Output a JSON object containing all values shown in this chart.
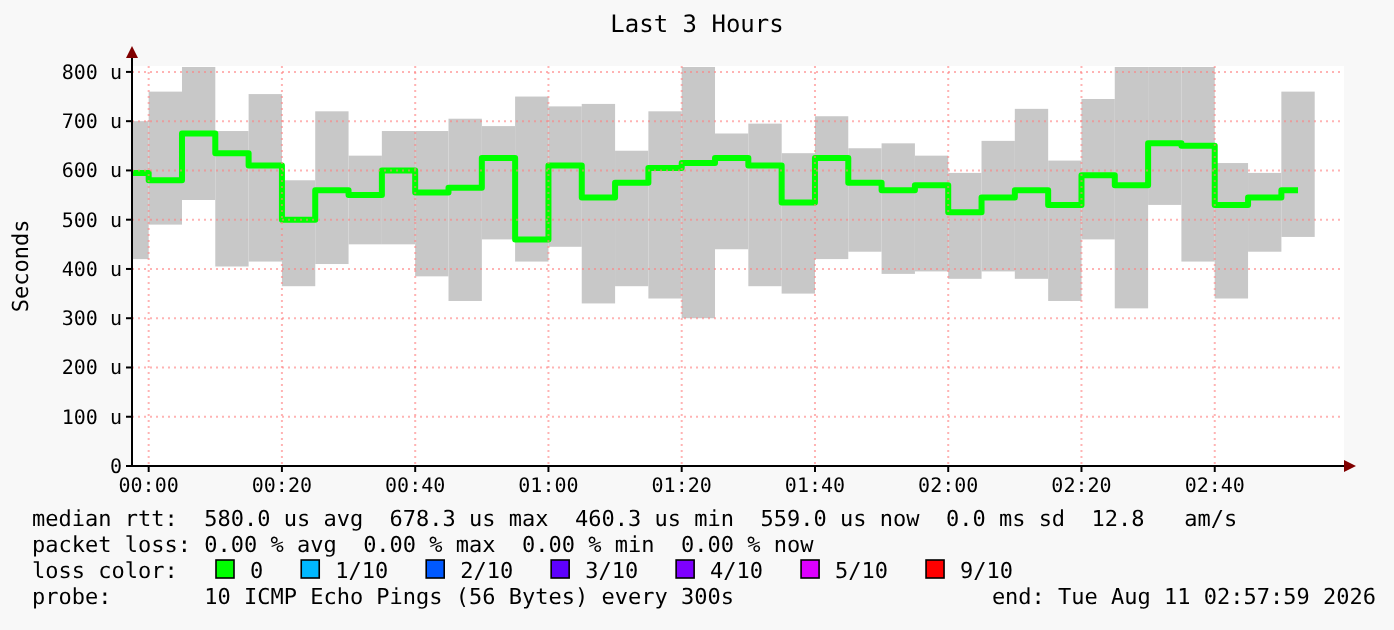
{
  "chart_data": {
    "type": "bar",
    "title": "Last 3 Hours",
    "ylabel": "Seconds",
    "x": [
      -0.0417,
      0.0417,
      0.125,
      0.2083,
      0.2917,
      0.375,
      0.4583,
      0.5417,
      0.625,
      0.7083,
      0.7917,
      0.875,
      0.9583,
      1.0417,
      1.125,
      1.2083,
      1.2917,
      1.375,
      1.4583,
      1.5417,
      1.625,
      1.7083,
      1.7917,
      1.875,
      1.9583,
      2.0417,
      2.125,
      2.2083,
      2.2917,
      2.375,
      2.4583,
      2.5417,
      2.625,
      2.7083,
      2.7917,
      2.875
    ],
    "series": [
      {
        "color": "#c8c8c8",
        "base": [
          420,
          490,
          540,
          405,
          415,
          365,
          410,
          450,
          450,
          385,
          335,
          460,
          415,
          445,
          330,
          365,
          340,
          300,
          440,
          365,
          350,
          420,
          435,
          390,
          395,
          380,
          395,
          380,
          335,
          460,
          320,
          530,
          415,
          340,
          435,
          465
        ],
        "values": [
          280,
          270,
          270,
          275,
          340,
          215,
          310,
          180,
          230,
          295,
          370,
          230,
          335,
          285,
          405,
          275,
          380,
          510,
          235,
          330,
          285,
          290,
          210,
          265,
          235,
          215,
          265,
          345,
          285,
          285,
          490,
          280,
          395,
          275,
          160,
          295
        ]
      },
      {
        "type": "step",
        "name": "0",
        "color": "#00ff00",
        "values": [
          595,
          580,
          675,
          635,
          610,
          500,
          560,
          550,
          600,
          555,
          565,
          625,
          460,
          610,
          545,
          575,
          605,
          615,
          625,
          610,
          535,
          625,
          575,
          560,
          570,
          515,
          545,
          560,
          530,
          590,
          570,
          655,
          650,
          530,
          545,
          560
        ]
      },
      {
        "type": "step",
        "name": "1/10",
        "color": "#00b8ff",
        "values": [
          null,
          null,
          null,
          null,
          null,
          null,
          null,
          null,
          null,
          null,
          null,
          null,
          null,
          null,
          null,
          null,
          null,
          null,
          null,
          null,
          null,
          null,
          null,
          null,
          null,
          null,
          null,
          null,
          null,
          null,
          null,
          null,
          null,
          null,
          null,
          null
        ]
      },
      {
        "type": "step",
        "name": "2/10",
        "color": "#0059ff",
        "values": [
          null,
          null,
          null,
          null,
          null,
          null,
          null,
          null,
          null,
          null,
          null,
          null,
          null,
          null,
          null,
          null,
          null,
          null,
          null,
          null,
          null,
          null,
          null,
          null,
          null,
          null,
          null,
          null,
          null,
          null,
          null,
          null,
          null,
          null,
          null,
          null
        ]
      },
      {
        "type": "step",
        "name": "3/10",
        "color": "#5e00ff",
        "values": [
          null,
          null,
          null,
          null,
          null,
          null,
          null,
          null,
          null,
          null,
          null,
          null,
          null,
          null,
          null,
          null,
          null,
          null,
          null,
          null,
          null,
          null,
          null,
          null,
          null,
          null,
          null,
          null,
          null,
          null,
          null,
          null,
          null,
          null,
          null,
          null
        ]
      },
      {
        "type": "step",
        "name": "4/10",
        "color": "#7e00ff",
        "values": [
          null,
          null,
          null,
          null,
          null,
          null,
          null,
          null,
          null,
          null,
          null,
          null,
          null,
          null,
          null,
          null,
          null,
          null,
          null,
          null,
          null,
          null,
          null,
          null,
          null,
          null,
          null,
          null,
          null,
          null,
          null,
          null,
          null,
          null,
          null,
          null
        ]
      },
      {
        "type": "step",
        "name": "5/10",
        "color": "#dd00ff",
        "values": [
          null,
          null,
          null,
          null,
          null,
          null,
          null,
          null,
          null,
          null,
          null,
          null,
          null,
          null,
          null,
          null,
          null,
          null,
          null,
          null,
          null,
          null,
          null,
          null,
          null,
          null,
          null,
          null,
          null,
          null,
          null,
          null,
          null,
          null,
          null,
          null
        ]
      },
      {
        "type": "step",
        "name": "9/10",
        "color": "#ff0000",
        "values": [
          null,
          null,
          null,
          null,
          null,
          null,
          null,
          null,
          null,
          null,
          null,
          null,
          null,
          null,
          null,
          null,
          null,
          null,
          null,
          null,
          null,
          null,
          null,
          null,
          null,
          null,
          null,
          null,
          null,
          null,
          null,
          null,
          null,
          null,
          null,
          null
        ]
      }
    ],
    "xlim": [
      -0.0417,
      2.99
    ],
    "xticks": [
      {
        "value": 0,
        "label": "00:00"
      },
      {
        "value": 0.3333,
        "label": "00:20"
      },
      {
        "value": 0.6667,
        "label": "00:40"
      },
      {
        "value": 1,
        "label": "01:00"
      },
      {
        "value": 1.3333,
        "label": "01:20"
      },
      {
        "value": 1.6667,
        "label": "01:40"
      },
      {
        "value": 2,
        "label": "02:00"
      },
      {
        "value": 2.3333,
        "label": "02:20"
      },
      {
        "value": 2.6667,
        "label": "02:40"
      }
    ],
    "ylim": [
      0,
      812
    ],
    "yticks": [
      0,
      {
        "value": 100,
        "label": "100 u"
      },
      {
        "value": 200,
        "label": "200 u"
      },
      {
        "value": 300,
        "label": "300 u"
      },
      {
        "value": 400,
        "label": "400 u"
      },
      {
        "value": 500,
        "label": "500 u"
      },
      {
        "value": 600,
        "label": "600 u"
      },
      {
        "value": 700,
        "label": "700 u"
      },
      {
        "value": 800,
        "label": "800 u"
      }
    ],
    "grid": true,
    "legend": "bottom",
    "legend_title": "loss color:",
    "annotations": [
      "median rtt:  580.0 us avg  678.3 us max  460.3 us min  559.0 us now  0.0 ms sd  12.8   am/s",
      "packet loss: 0.00 % avg  0.00 % max  0.00 % min  0.00 % now",
      "probe:       10 ICMP Echo Pings (56 Bytes) every 300s",
      "end: Tue Aug 11 02:57:59 2026"
    ]
  }
}
